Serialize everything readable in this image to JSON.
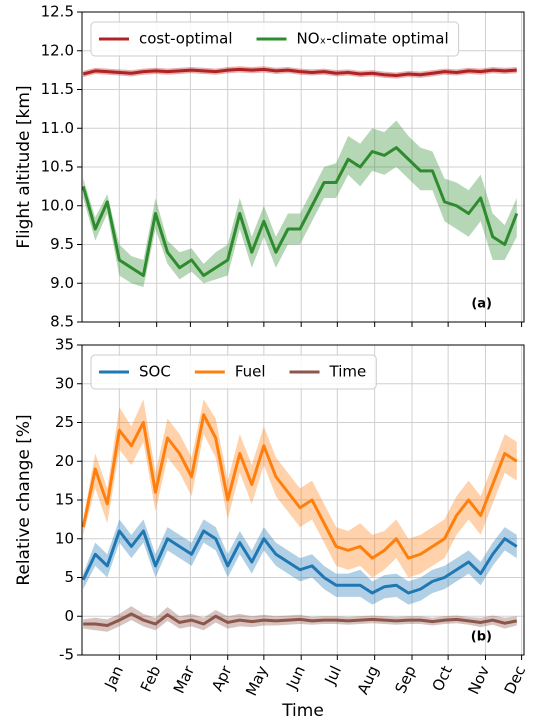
{
  "chart_data": [
    {
      "type": "line",
      "ylabel": "Flight altitude [km]",
      "annotation": "(a)",
      "grid": true,
      "legend": "top",
      "x": [
        -30,
        -20,
        -10,
        0,
        10,
        20,
        30,
        40,
        50,
        60,
        70,
        80,
        90,
        100,
        110,
        120,
        130,
        140,
        150,
        160,
        170,
        180,
        190,
        200,
        210,
        220,
        230,
        240,
        250,
        260,
        270,
        280,
        290,
        300,
        310,
        320,
        330
      ],
      "xlim": [
        -31,
        336
      ],
      "xticks": [
        0,
        31,
        59,
        90,
        120,
        151,
        181,
        212,
        243,
        273,
        304,
        334
      ],
      "ylim": [
        8.5,
        12.5
      ],
      "yticks": [
        8.5,
        {
          "value": 9,
          "label": "9.0"
        },
        9.5,
        {
          "value": 10,
          "label": "10.0"
        },
        10.5,
        {
          "value": 11,
          "label": "11.0"
        },
        11.5,
        {
          "value": 12,
          "label": "12.0"
        },
        12.5
      ],
      "series": [
        {
          "name": "cost-optimal",
          "color": "#b22222",
          "values": [
            11.7,
            11.74,
            11.73,
            11.72,
            11.71,
            11.73,
            11.74,
            11.73,
            11.74,
            11.75,
            11.74,
            11.73,
            11.75,
            11.76,
            11.75,
            11.76,
            11.74,
            11.75,
            11.73,
            11.72,
            11.73,
            11.71,
            11.72,
            11.7,
            11.71,
            11.69,
            11.68,
            11.7,
            11.69,
            11.71,
            11.73,
            11.72,
            11.74,
            11.73,
            11.75,
            11.74,
            11.75
          ],
          "lower": [
            11.66,
            11.7,
            11.69,
            11.68,
            11.67,
            11.69,
            11.7,
            11.69,
            11.7,
            11.71,
            11.7,
            11.69,
            11.71,
            11.72,
            11.71,
            11.72,
            11.7,
            11.71,
            11.69,
            11.68,
            11.69,
            11.67,
            11.68,
            11.66,
            11.67,
            11.65,
            11.64,
            11.66,
            11.65,
            11.67,
            11.69,
            11.68,
            11.7,
            11.69,
            11.71,
            11.7,
            11.71
          ],
          "upper": [
            11.74,
            11.78,
            11.77,
            11.76,
            11.75,
            11.77,
            11.78,
            11.77,
            11.78,
            11.79,
            11.78,
            11.77,
            11.79,
            11.8,
            11.79,
            11.8,
            11.78,
            11.79,
            11.77,
            11.76,
            11.77,
            11.75,
            11.76,
            11.74,
            11.75,
            11.73,
            11.72,
            11.74,
            11.73,
            11.75,
            11.77,
            11.76,
            11.78,
            11.77,
            11.79,
            11.78,
            11.79
          ]
        },
        {
          "name": "NOₓ-climate optimal",
          "color": "#2e8b2e",
          "values": [
            10.25,
            9.7,
            10.05,
            9.3,
            9.2,
            9.1,
            9.9,
            9.4,
            9.2,
            9.3,
            9.1,
            9.2,
            9.3,
            9.9,
            9.4,
            9.8,
            9.4,
            9.7,
            9.7,
            10.0,
            10.3,
            10.3,
            10.6,
            10.5,
            10.7,
            10.65,
            10.75,
            10.6,
            10.45,
            10.45,
            10.05,
            10.0,
            9.9,
            10.1,
            9.6,
            9.5,
            9.9
          ],
          "lower": [
            10.1,
            9.55,
            9.9,
            9.1,
            9.0,
            8.95,
            9.7,
            9.25,
            9.05,
            9.15,
            9.0,
            9.05,
            9.1,
            9.7,
            9.2,
            9.6,
            9.2,
            9.5,
            9.5,
            9.8,
            10.1,
            10.1,
            10.4,
            10.25,
            10.45,
            10.4,
            10.5,
            10.35,
            10.2,
            10.2,
            9.8,
            9.7,
            9.6,
            9.8,
            9.3,
            9.3,
            9.6
          ],
          "upper": [
            10.35,
            9.85,
            10.15,
            9.5,
            9.35,
            9.3,
            10.1,
            9.55,
            9.4,
            9.45,
            9.25,
            9.4,
            9.5,
            10.1,
            9.6,
            10.0,
            9.6,
            9.9,
            9.9,
            10.2,
            10.5,
            10.55,
            10.9,
            10.8,
            11.0,
            10.95,
            11.1,
            10.9,
            10.75,
            10.7,
            10.35,
            10.3,
            10.2,
            10.4,
            9.9,
            9.75,
            10.1
          ]
        }
      ]
    },
    {
      "type": "line",
      "ylabel": "Relative change [%]",
      "xlabel": "Time",
      "annotation": "(b)",
      "grid": true,
      "legend": "top",
      "x": [
        -30,
        -20,
        -10,
        0,
        10,
        20,
        30,
        40,
        50,
        60,
        70,
        80,
        90,
        100,
        110,
        120,
        130,
        140,
        150,
        160,
        170,
        180,
        190,
        200,
        210,
        220,
        230,
        240,
        250,
        260,
        270,
        280,
        290,
        300,
        310,
        320,
        330
      ],
      "xlim": [
        -31,
        336
      ],
      "xticks": [
        {
          "value": 0,
          "label": "Jan"
        },
        {
          "value": 31,
          "label": "Feb"
        },
        {
          "value": 59,
          "label": "Mar"
        },
        {
          "value": 90,
          "label": "Apr"
        },
        {
          "value": 120,
          "label": "May"
        },
        {
          "value": 151,
          "label": "Jun"
        },
        {
          "value": 181,
          "label": "Jul"
        },
        {
          "value": 212,
          "label": "Aug"
        },
        {
          "value": 243,
          "label": "Sep"
        },
        {
          "value": 273,
          "label": "Oct"
        },
        {
          "value": 304,
          "label": "Nov"
        },
        {
          "value": 334,
          "label": "Dec"
        }
      ],
      "ylim": [
        -5,
        35
      ],
      "yticks": [
        -5,
        0,
        5,
        10,
        15,
        20,
        25,
        30,
        35
      ],
      "series": [
        {
          "name": "SOC",
          "color": "#1f77b4",
          "values": [
            4.7,
            8,
            6.5,
            11,
            9,
            11,
            6.5,
            10,
            9,
            8,
            11,
            10,
            6.5,
            9.5,
            7,
            10,
            8,
            7,
            6,
            6.5,
            5,
            4,
            4,
            4,
            3,
            3.8,
            4,
            3,
            3.5,
            4.5,
            5,
            6,
            7,
            5.5,
            8,
            10,
            9
          ],
          "lower": [
            3.5,
            6.5,
            5,
            9.5,
            7.5,
            9.5,
            5,
            8.5,
            7.5,
            6.5,
            9.5,
            8.5,
            5,
            8,
            5.5,
            8.5,
            6.5,
            5.5,
            4.5,
            5,
            3.5,
            2.5,
            2.5,
            2.5,
            1.5,
            2.3,
            2.5,
            1.5,
            2,
            3,
            3.5,
            4.5,
            5.5,
            4,
            6.5,
            8.5,
            7.5
          ],
          "upper": [
            5.5,
            9.5,
            8,
            12.5,
            10.5,
            12.5,
            8,
            11.5,
            10.5,
            9.5,
            12.5,
            11.5,
            8,
            11,
            8.5,
            11.5,
            9.5,
            8.5,
            7.5,
            8,
            6.5,
            5.5,
            5.5,
            6,
            4.5,
            5.3,
            5.5,
            4.5,
            5,
            6,
            6.5,
            7.5,
            8.5,
            7,
            9.5,
            11.5,
            10.5
          ]
        },
        {
          "name": "Fuel",
          "color": "#ff7f0e",
          "values": [
            11.5,
            19,
            14.5,
            24,
            22,
            25,
            16,
            23,
            21,
            18,
            26,
            23,
            15,
            21,
            17,
            22,
            18,
            16,
            14,
            15,
            12,
            9,
            8.5,
            9,
            7.5,
            8.5,
            10,
            7.5,
            8,
            9,
            10,
            13,
            15,
            13,
            17,
            21,
            20
          ],
          "lower": [
            10.5,
            16.5,
            12,
            21.5,
            19.5,
            22.5,
            13.5,
            20.5,
            18.5,
            15.5,
            23.5,
            20.5,
            12.5,
            18.5,
            14.5,
            19.5,
            15.5,
            13.5,
            11.5,
            12.5,
            9.5,
            6.5,
            6,
            6.5,
            5,
            6,
            7.5,
            5,
            5.5,
            6.5,
            7.5,
            10.5,
            12.5,
            10.5,
            14.5,
            18.5,
            17.5
          ],
          "upper": [
            12.5,
            21,
            16.5,
            27,
            24.5,
            28,
            18.5,
            25.5,
            23.5,
            20.5,
            28,
            25.5,
            17.5,
            23.5,
            19.5,
            24.5,
            20.5,
            18.5,
            16.5,
            17.5,
            14.5,
            11.5,
            11,
            12,
            10.5,
            11,
            12.5,
            10,
            10.5,
            11.5,
            12.5,
            15.5,
            17.5,
            15.5,
            19.5,
            23.5,
            22.5
          ]
        },
        {
          "name": "Time",
          "color": "#8c564b",
          "values": [
            -1,
            -1,
            -1.2,
            -0.5,
            0.3,
            -0.5,
            -1,
            0.2,
            -0.8,
            -0.5,
            -1,
            0,
            -0.8,
            -0.5,
            -0.7,
            -0.5,
            -0.6,
            -0.5,
            -0.4,
            -0.6,
            -0.5,
            -0.5,
            -0.6,
            -0.5,
            -0.4,
            -0.5,
            -0.6,
            -0.5,
            -0.5,
            -0.7,
            -0.5,
            -0.4,
            -0.6,
            -0.8,
            -0.5,
            -0.9,
            -0.6
          ],
          "lower": [
            -1.6,
            -1.8,
            -2,
            -1.3,
            -0.5,
            -1.3,
            -1.8,
            -0.6,
            -1.6,
            -1.3,
            -1.8,
            -0.8,
            -1.6,
            -1.3,
            -1.4,
            -1.2,
            -1.2,
            -1.1,
            -1,
            -1.1,
            -1,
            -1,
            -1.1,
            -1,
            -0.9,
            -1,
            -1.1,
            -1,
            -1,
            -1.2,
            -1,
            -0.9,
            -1.1,
            -1.4,
            -1.1,
            -1.6,
            -1.2
          ],
          "upper": [
            -0.4,
            -0.2,
            -0.4,
            0.3,
            1.3,
            0.3,
            -0.2,
            1.2,
            0,
            0.3,
            -0.2,
            0.8,
            0,
            0.3,
            0,
            0.2,
            0,
            0.1,
            0.2,
            -0.1,
            0,
            0,
            -0.1,
            0,
            0.1,
            0,
            -0.1,
            0,
            0,
            -0.2,
            0,
            0.1,
            -0.1,
            -0.2,
            0.1,
            -0.2,
            0
          ]
        }
      ]
    }
  ]
}
